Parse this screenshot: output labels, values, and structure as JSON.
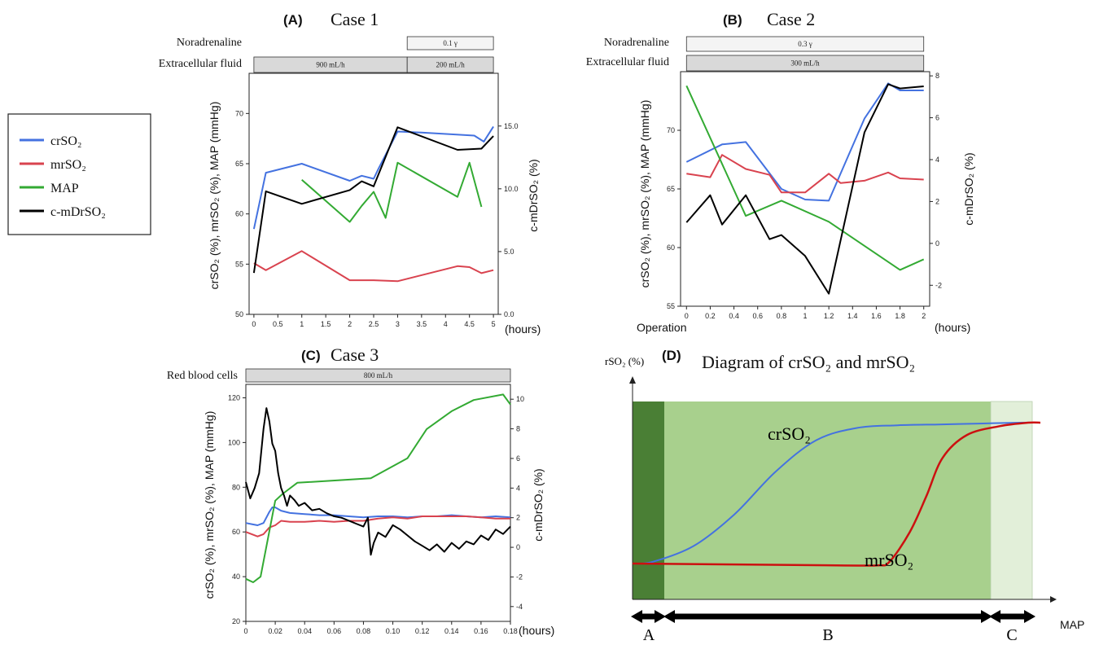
{
  "legend": [
    {
      "label": "crSO₂",
      "color": "#4472e0"
    },
    {
      "label": "mrSO₂",
      "color": "#d9434f"
    },
    {
      "label": "MAP",
      "color": "#33aa33"
    },
    {
      "label": "c-mDrSO₂",
      "color": "#000000"
    }
  ],
  "colors": {
    "cr": "#4472e0",
    "mr": "#d9434f",
    "map": "#33aa33",
    "cmd": "#000000",
    "bar": "#d9d9d9",
    "bar_light": "#f4f4f4",
    "zone_a": "#4a7f35",
    "zone_b": "#a8d08d",
    "zone_c": "#e2efd9"
  },
  "chart_data": [
    {
      "panel": "(A)",
      "title": "Case 1",
      "type": "line",
      "treatments": [
        {
          "label": "Noradrenaline",
          "segments": [
            {
              "start": 3.2,
              "end": 5,
              "text": "0.1 γ"
            }
          ]
        },
        {
          "label": "Extracellular fluid",
          "segments": [
            {
              "start": 0,
              "end": 3.2,
              "text": "900 mL/h"
            },
            {
              "start": 3.2,
              "end": 5,
              "text": "200 mL/h"
            }
          ]
        }
      ],
      "xlabel": "(hours)",
      "ylabel_left": "crSO₂ (%), mrSO₂ (%), MAP (mmHg)",
      "ylabel_right": "c-mDrSO₂ (%)",
      "xlim": [
        -0.1,
        5.1
      ],
      "ylim_left": [
        50,
        74
      ],
      "ylim_right": [
        0,
        19.2
      ],
      "xticks": [
        "0",
        "0.5",
        "1",
        "1.5",
        "2",
        "2.5",
        "3",
        "3.5",
        "4",
        "4.5",
        "5"
      ],
      "yticks_left": [
        "50",
        "55",
        "60",
        "65",
        "70"
      ],
      "yticks_right": [
        "0.0",
        "5.0",
        "10.0",
        "15.0"
      ],
      "series": [
        {
          "name": "crSO₂",
          "axis": "left",
          "x": [
            0,
            0.25,
            1,
            2,
            2.25,
            2.5,
            2.6,
            3,
            3.5,
            4.6,
            4.8,
            5
          ],
          "y": [
            58.5,
            64.1,
            65,
            63.3,
            63.8,
            63.5,
            64.5,
            68.2,
            68.1,
            67.8,
            67.2,
            68.7
          ]
        },
        {
          "name": "mrSO₂",
          "axis": "left",
          "x": [
            0,
            0.25,
            1,
            2,
            2.5,
            3,
            4.25,
            4.5,
            4.75,
            5
          ],
          "y": [
            55.1,
            54.4,
            56.3,
            53.4,
            53.4,
            53.3,
            54.8,
            54.7,
            54.1,
            54.4
          ]
        },
        {
          "name": "MAP",
          "axis": "left",
          "x": [
            1,
            2,
            2.25,
            2.5,
            2.75,
            3,
            4.25,
            4.5,
            4.75
          ],
          "y": [
            63.4,
            59.2,
            60.8,
            62.2,
            59.6,
            65.1,
            61.7,
            65.1,
            60.7
          ]
        },
        {
          "name": "c-mDrSO₂",
          "axis": "right",
          "x": [
            0,
            0.25,
            1,
            2,
            2.25,
            2.5,
            3,
            4.25,
            4.75,
            5
          ],
          "y": [
            3.3,
            9.8,
            8.8,
            9.9,
            10.6,
            10.2,
            14.9,
            13.1,
            13.2,
            14.2
          ]
        }
      ]
    },
    {
      "panel": "(B)",
      "title": "Case 2",
      "type": "line",
      "treatments": [
        {
          "label": "Noradrenaline",
          "segments": [
            {
              "start": 0,
              "end": 2,
              "text": "0.3 γ"
            }
          ]
        },
        {
          "label": "Extracellular fluid",
          "segments": [
            {
              "start": 0,
              "end": 2,
              "text": "300 mL/h"
            }
          ]
        }
      ],
      "xlabel": "(hours)",
      "xnote": "Operation",
      "ylabel_left": "crSO₂ (%), mrSO₂ (%), MAP (mmHg)",
      "ylabel_right": "c-mDrSO₂ (%)",
      "xlim": [
        -0.05,
        2.05
      ],
      "ylim_left": [
        55,
        75
      ],
      "ylim_right": [
        -3,
        8.2
      ],
      "xticks": [
        "0",
        "0.2",
        "0.4",
        "0.6",
        "0.8",
        "1",
        "1.2",
        "1.4",
        "1.6",
        "1.8",
        "2"
      ],
      "yticks_left": [
        "55",
        "60",
        "65",
        "70"
      ],
      "yticks_right": [
        "-2",
        "0",
        "2",
        "4",
        "6",
        "8"
      ],
      "series": [
        {
          "name": "crSO₂",
          "axis": "left",
          "x": [
            0,
            0.3,
            0.5,
            0.8,
            1,
            1.2,
            1.5,
            1.7,
            1.8,
            2
          ],
          "y": [
            67.3,
            68.8,
            69,
            65,
            64.1,
            64,
            71,
            74,
            73.4,
            73.4
          ]
        },
        {
          "name": "mrSO₂",
          "axis": "left",
          "x": [
            0,
            0.2,
            0.3,
            0.5,
            0.7,
            0.8,
            1,
            1.2,
            1.3,
            1.5,
            1.7,
            1.8,
            2
          ],
          "y": [
            66.3,
            66,
            67.9,
            66.7,
            66.2,
            64.7,
            64.7,
            66.3,
            65.5,
            65.7,
            66.4,
            65.9,
            65.8
          ]
        },
        {
          "name": "MAP",
          "axis": "left",
          "x": [
            0,
            0.5,
            0.8,
            1.2,
            1.8,
            2
          ],
          "y": [
            73.8,
            62.7,
            64,
            62.2,
            58.1,
            59
          ]
        },
        {
          "name": "c-mDrSO₂",
          "axis": "right",
          "x": [
            0,
            0.2,
            0.3,
            0.5,
            0.7,
            0.8,
            1,
            1.2,
            1.5,
            1.7,
            1.8,
            2
          ],
          "y": [
            1,
            2.3,
            0.9,
            2.3,
            0.2,
            0.4,
            -0.6,
            -2.4,
            5.3,
            7.6,
            7.4,
            7.5
          ]
        }
      ]
    },
    {
      "panel": "(C)",
      "title": "Case 3",
      "type": "line",
      "treatments": [
        {
          "label": "Red blood cells",
          "segments": [
            {
              "start": 0,
              "end": 0.18,
              "text": "800 mL/h"
            }
          ]
        }
      ],
      "xlabel": "(hours)",
      "ylabel_left": "crSO₂ (%), mrSO₂ (%), MAP (mmHg)",
      "ylabel_right": "c-mDrSO₂ (%)",
      "xlim": [
        0,
        0.18
      ],
      "ylim_left": [
        20,
        126
      ],
      "ylim_right": [
        -5,
        11
      ],
      "xticks": [
        "0",
        "0.02",
        "0.04",
        "0.06",
        "0.08",
        "0.10",
        "0.12",
        "0.14",
        "0.16",
        "0.18"
      ],
      "yticks_left": [
        "20",
        "40",
        "60",
        "80",
        "100",
        "120"
      ],
      "yticks_right": [
        "-4",
        "-2",
        "0",
        "2",
        "4",
        "6",
        "8",
        "10"
      ],
      "series": [
        {
          "name": "crSO₂",
          "axis": "left",
          "x": [
            0,
            0.004,
            0.008,
            0.012,
            0.016,
            0.018,
            0.02,
            0.024,
            0.03,
            0.04,
            0.05,
            0.06,
            0.07,
            0.08,
            0.09,
            0.1,
            0.11,
            0.12,
            0.13,
            0.14,
            0.15,
            0.16,
            0.17,
            0.18
          ],
          "y": [
            64,
            63.5,
            63,
            64,
            69,
            71,
            71,
            69.5,
            68.5,
            68,
            67.5,
            67.5,
            67,
            66.5,
            67,
            67,
            66.5,
            67,
            67,
            67.5,
            67,
            66.5,
            67,
            66.5
          ]
        },
        {
          "name": "mrSO₂",
          "axis": "left",
          "x": [
            0,
            0.004,
            0.008,
            0.012,
            0.016,
            0.02,
            0.024,
            0.03,
            0.04,
            0.05,
            0.06,
            0.07,
            0.08,
            0.09,
            0.1,
            0.11,
            0.12,
            0.13,
            0.14,
            0.15,
            0.16,
            0.17,
            0.18
          ],
          "y": [
            60,
            59,
            58,
            59,
            62,
            63,
            65,
            64.5,
            64.5,
            65,
            64.5,
            65,
            65,
            66,
            66.5,
            66,
            67,
            67,
            67,
            67,
            66.5,
            66,
            66
          ]
        },
        {
          "name": "MAP",
          "axis": "left",
          "x": [
            0,
            0.005,
            0.01,
            0.02,
            0.025,
            0.035,
            0.085,
            0.11,
            0.123,
            0.14,
            0.155,
            0.175,
            0.18
          ],
          "y": [
            39,
            37.5,
            40,
            74,
            77,
            82,
            84,
            93,
            106,
            114,
            119,
            121.5,
            117
          ]
        },
        {
          "name": "c-mDrSO₂",
          "axis": "right",
          "x": [
            0,
            0.003,
            0.006,
            0.009,
            0.012,
            0.014,
            0.016,
            0.018,
            0.02,
            0.022,
            0.024,
            0.026,
            0.028,
            0.03,
            0.033,
            0.036,
            0.04,
            0.045,
            0.05,
            0.055,
            0.06,
            0.065,
            0.07,
            0.075,
            0.08,
            0.083,
            0.085,
            0.087,
            0.09,
            0.095,
            0.1,
            0.105,
            0.11,
            0.115,
            0.12,
            0.125,
            0.13,
            0.135,
            0.14,
            0.145,
            0.15,
            0.155,
            0.16,
            0.165,
            0.17,
            0.175,
            0.18
          ],
          "y": [
            4.4,
            3.3,
            4,
            5,
            8,
            9.4,
            8.5,
            7,
            6.5,
            5,
            4,
            3.5,
            2.8,
            3.5,
            3.2,
            2.8,
            3,
            2.5,
            2.6,
            2.3,
            2.1,
            2,
            1.8,
            1.6,
            1.4,
            2,
            -0.5,
            0.3,
            1,
            0.7,
            1.5,
            1.2,
            0.8,
            0.4,
            0.1,
            -0.2,
            0.2,
            -0.3,
            0.3,
            -0.1,
            0.4,
            0.2,
            0.8,
            0.5,
            1.2,
            0.9,
            1.4
          ]
        }
      ]
    },
    {
      "panel": "(D)",
      "title": "Diagram of crSO₂ and mrSO₂",
      "type": "area",
      "ylabel": "rSO₂ (%)",
      "xlabel": "MAP",
      "curve_labels": [
        "crSO₂",
        "mrSO₂"
      ],
      "zones": [
        "A",
        "B",
        "C"
      ],
      "series": [
        {
          "name": "crSO₂",
          "x": [
            0,
            0.05,
            0.15,
            0.25,
            0.35,
            0.45,
            0.55,
            0.65,
            0.75,
            0.85,
            0.95,
            1.0
          ],
          "y": [
            0.2,
            0.21,
            0.3,
            0.48,
            0.72,
            0.9,
            0.97,
            0.985,
            0.99,
            0.995,
            1.0,
            1.0
          ]
        },
        {
          "name": "mrSO₂",
          "x": [
            0,
            0.5,
            0.6,
            0.63,
            0.68,
            0.72,
            0.76,
            0.82,
            0.9,
            0.97,
            1.0
          ],
          "y": [
            0.2,
            0.19,
            0.19,
            0.21,
            0.38,
            0.58,
            0.8,
            0.93,
            0.98,
            1.0,
            1.0
          ]
        }
      ]
    }
  ]
}
